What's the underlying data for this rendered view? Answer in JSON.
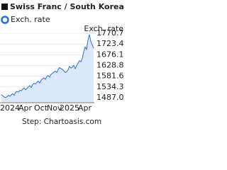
{
  "chart_data": {
    "type": "line",
    "title": "Swiss Franc / South Korean W",
    "legend": "Exch. rate",
    "y_label": "Exch. rate",
    "footer": "Step: Chartoasis.com",
    "categories": [
      "2024",
      null,
      null,
      null,
      null,
      null,
      null,
      null,
      null,
      null,
      null,
      null,
      null,
      "Apr",
      null,
      null,
      null,
      null,
      null,
      null,
      null,
      null,
      null,
      null,
      "Oct",
      null,
      null,
      null,
      null,
      null,
      null,
      null,
      null,
      "Nov",
      null,
      null,
      null,
      null,
      null,
      null,
      null,
      null,
      "2025",
      null,
      null,
      null,
      null,
      null,
      null,
      null,
      null,
      null,
      null,
      null,
      null,
      "Apr",
      null,
      null,
      null,
      null,
      null,
      null,
      null,
      null,
      null,
      null
    ],
    "series": [
      {
        "name": "Exch. rate",
        "color": "#2b6fd6",
        "values": [
          1500,
          1495,
          1490,
          1488,
          1492,
          1498,
          1494,
          1500,
          1505,
          1498,
          1510,
          1515,
          1512,
          1520,
          1518,
          1525,
          1530,
          1522,
          1528,
          1535,
          1540,
          1532,
          1545,
          1550,
          1548,
          1555,
          1560,
          1552,
          1565,
          1570,
          1575,
          1568,
          1580,
          1585,
          1578,
          1590,
          1595,
          1600,
          1605,
          1598,
          1610,
          1620,
          1615,
          1612,
          1605,
          1598,
          1602,
          1610,
          1625,
          1618,
          1622,
          1630,
          1615,
          1628,
          1640,
          1650,
          1645,
          1660,
          1690,
          1710,
          1700,
          1740,
          1765,
          1735,
          1720,
          1705
        ]
      }
    ],
    "ylim": [
      1487,
      1770.7
    ],
    "yticks": [
      1770.7,
      1723.4,
      1676.1,
      1628.8,
      1581.6,
      1534.3,
      {
        "value": 1487,
        "label": "1487.0"
      }
    ],
    "grid": true
  }
}
